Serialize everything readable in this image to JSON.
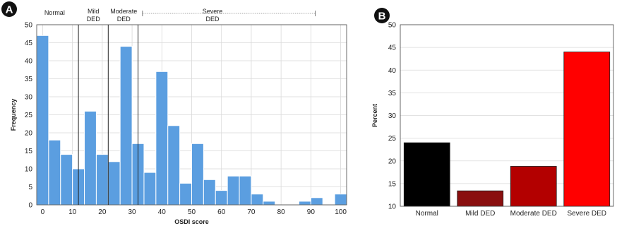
{
  "panels": [
    {
      "letter": "A"
    },
    {
      "letter": "B"
    }
  ],
  "severity_labels": [
    "Normal",
    "Mild DED",
    "Moderate DED",
    "Severe DED"
  ],
  "chart_data": [
    {
      "type": "bar",
      "subtype": "histogram",
      "xlabel": "OSDI score",
      "ylabel": "Frequency",
      "ylim": [
        0,
        50
      ],
      "yticks": [
        0,
        5,
        10,
        15,
        20,
        25,
        30,
        35,
        40,
        45,
        50
      ],
      "xlim": [
        -2,
        102
      ],
      "xticks": [
        0,
        10,
        20,
        30,
        40,
        50,
        60,
        70,
        80,
        90,
        100
      ],
      "bin_width": 4,
      "bin_starts": [
        -2,
        2,
        6,
        10,
        14,
        18,
        22,
        26,
        30,
        34,
        38,
        42,
        46,
        50,
        54,
        58,
        62,
        66,
        70,
        74,
        78,
        82,
        86,
        90,
        94,
        98
      ],
      "values": [
        47,
        18,
        14,
        10,
        26,
        14,
        12,
        44,
        17,
        9,
        37,
        22,
        6,
        17,
        7,
        4,
        8,
        8,
        3,
        1,
        0,
        0,
        1,
        2,
        0,
        3
      ],
      "bar_color": "#5b9ee0",
      "grid": true,
      "cutoffs": [
        12,
        22,
        32
      ],
      "severity_bands": [
        {
          "label": "Normal",
          "range": [
            0,
            12
          ]
        },
        {
          "label": "Mild DED",
          "range": [
            13,
            22
          ]
        },
        {
          "label": "Moderate DED",
          "range": [
            23,
            32
          ]
        },
        {
          "label": "Severe DED",
          "range": [
            33,
            92
          ]
        }
      ]
    },
    {
      "type": "bar",
      "categories": [
        "Normal",
        "Mild DED",
        "Moderate DED",
        "Severe DED"
      ],
      "values": [
        24,
        13.4,
        18.8,
        44
      ],
      "colors": [
        "#000000",
        "#8a0f0f",
        "#b30000",
        "#ff0000"
      ],
      "xlabel": "",
      "ylabel": "Percent",
      "ylim": [
        10,
        50
      ],
      "yticks": [
        10,
        15,
        20,
        25,
        30,
        35,
        40,
        45,
        50
      ],
      "grid": true
    }
  ]
}
